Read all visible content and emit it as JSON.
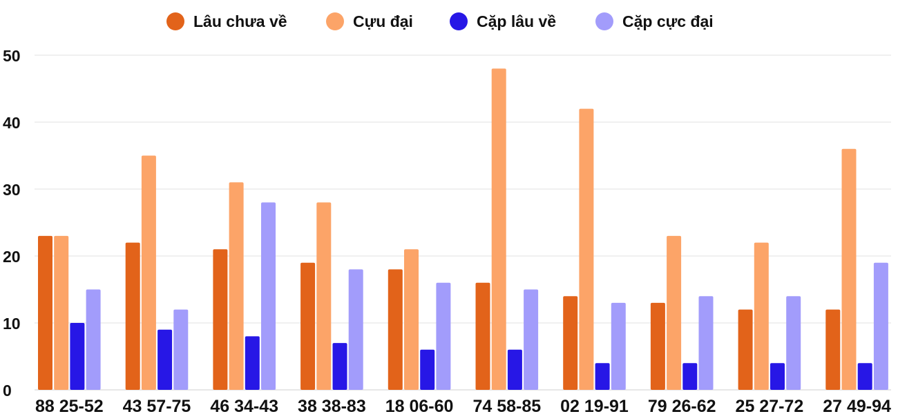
{
  "chart_data": {
    "type": "bar",
    "categories": [
      "88 25-52",
      "43 57-75",
      "46 34-43",
      "38 38-83",
      "18 06-60",
      "74 58-85",
      "02 19-91",
      "79 26-62",
      "25 27-72",
      "27 49-94"
    ],
    "series": [
      {
        "name": "Lâu chưa về",
        "color": "#e2631a",
        "values": [
          23,
          22,
          21,
          19,
          18,
          16,
          14,
          13,
          12,
          12
        ]
      },
      {
        "name": "Cựu đại",
        "color": "#fca468",
        "values": [
          23,
          35,
          31,
          28,
          21,
          48,
          42,
          23,
          22,
          36
        ]
      },
      {
        "name": "Cặp lâu về",
        "color": "#2717e6",
        "values": [
          10,
          9,
          8,
          7,
          6,
          6,
          4,
          4,
          4,
          4
        ]
      },
      {
        "name": "Cặp cực đại",
        "color": "#a29cfb",
        "values": [
          15,
          12,
          28,
          18,
          16,
          15,
          13,
          14,
          14,
          19
        ]
      }
    ],
    "title": "",
    "xlabel": "",
    "ylabel": "",
    "ylim": [
      0,
      50
    ],
    "yticks": [
      "0",
      "10",
      "20",
      "30",
      "40",
      "50"
    ],
    "grid": true,
    "legend_position": "top-center"
  }
}
